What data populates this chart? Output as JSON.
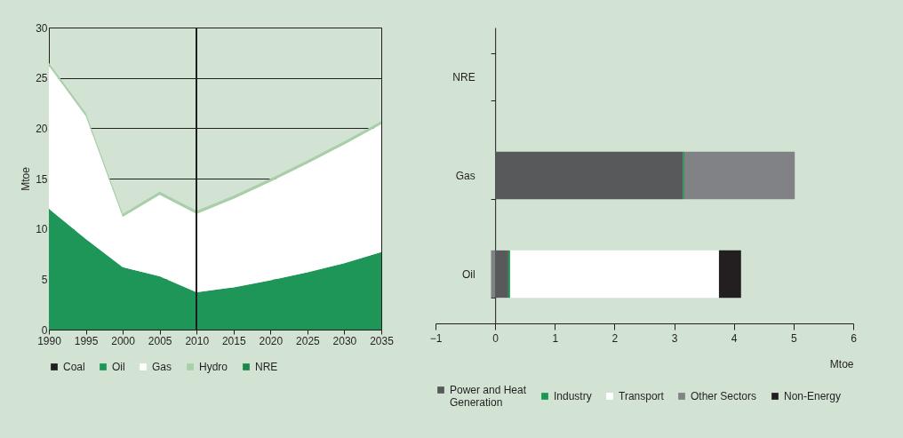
{
  "chart_data": [
    {
      "type": "area",
      "stacked": true,
      "ylabel": "Mtoe",
      "x": [
        1990,
        1995,
        2000,
        2005,
        2010,
        2015,
        2020,
        2025,
        2030,
        2035
      ],
      "xlim": [
        1990,
        2035
      ],
      "xticks": [
        1990,
        1995,
        2000,
        2005,
        2010,
        2015,
        2020,
        2025,
        2030,
        2035
      ],
      "ylim": [
        0,
        30
      ],
      "yticks": [
        0,
        5,
        10,
        15,
        20,
        25,
        30
      ],
      "grid": "y",
      "legend": "bottom",
      "ref_lines": [
        {
          "axis": "x",
          "value": 2010,
          "color": "#231f20"
        }
      ],
      "series": [
        {
          "name": "Coal",
          "color": "#231f20",
          "values": [
            null,
            null,
            null,
            null,
            null,
            null,
            null,
            null,
            null,
            null
          ]
        },
        {
          "name": "Oil",
          "color": "#1e9658",
          "values": [
            12,
            9,
            6.2,
            5.3,
            3.7,
            4.2,
            4.9,
            5.7,
            6.6,
            7.7
          ]
        },
        {
          "name": "Gas",
          "color": "#ffffff",
          "values": [
            14.2,
            12.2,
            5,
            8.1,
            7.8,
            8.8,
            9.8,
            10.8,
            11.8,
            12.7
          ]
        },
        {
          "name": "Hydro",
          "color": "#a8cfa9",
          "values": [
            0.3,
            0.3,
            0.3,
            0.3,
            0.3,
            0.3,
            0.3,
            0.3,
            0.3,
            0.3
          ]
        },
        {
          "name": "NRE",
          "color": "#1a8a4a",
          "values": [
            null,
            null,
            null,
            null,
            null,
            null,
            null,
            null,
            null,
            null
          ]
        }
      ]
    },
    {
      "type": "bar",
      "orientation": "horizontal",
      "stacked": true,
      "xlabel": "Mtoe",
      "categories": [
        "NRE",
        "Gas",
        "Oil"
      ],
      "xlim": [
        -1,
        6
      ],
      "xticks": [
        -1,
        0,
        1,
        2,
        3,
        4,
        5,
        6
      ],
      "legend": "bottom",
      "series": [
        {
          "name": "Power and Heat Generation",
          "color": "#58595b",
          "values": [
            null,
            3.15,
            0.22
          ]
        },
        {
          "name": "Industry",
          "color": "#1a9850",
          "values": [
            null,
            0.02,
            0.03
          ]
        },
        {
          "name": "Transport",
          "color": "#ffffff",
          "values": [
            null,
            null,
            3.5
          ]
        },
        {
          "name": "Other Sectors",
          "color": "#808285",
          "values": [
            null,
            1.85,
            -0.07
          ]
        },
        {
          "name": "Non-Energy",
          "color": "#231f20",
          "values": [
            null,
            null,
            0.37
          ]
        }
      ]
    }
  ]
}
